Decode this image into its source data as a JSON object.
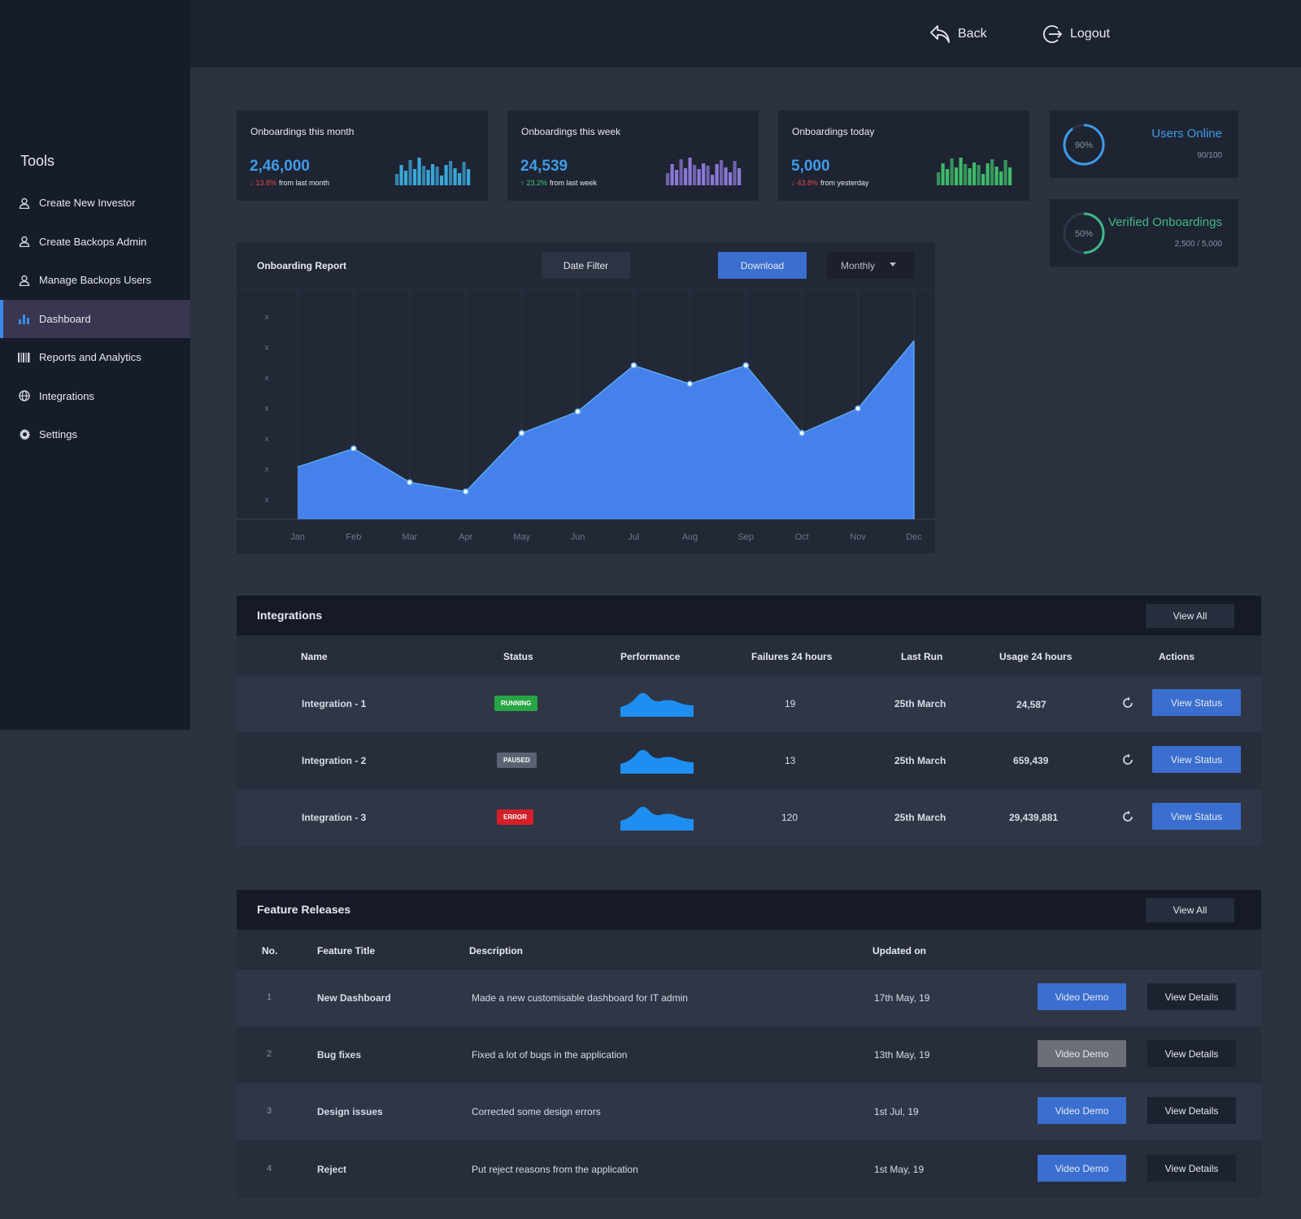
{
  "sidebar": {
    "title": "Tools",
    "items": [
      {
        "label": "Create New Investor",
        "icon": "user-icon"
      },
      {
        "label": "Create Backops Admin",
        "icon": "user-icon"
      },
      {
        "label": "Manage Backops Users",
        "icon": "user-icon"
      },
      {
        "label": "Dashboard",
        "icon": "bar-chart-icon",
        "active": true
      },
      {
        "label": "Reports and Analytics",
        "icon": "barcode-icon"
      },
      {
        "label": "Integrations",
        "icon": "globe-icon"
      },
      {
        "label": "Settings",
        "icon": "gear-icon"
      }
    ]
  },
  "header": {
    "back_label": "Back",
    "logout_label": "Logout"
  },
  "stats": [
    {
      "title": "Onboardings this month",
      "value": "2,46,000",
      "change": "13.8%",
      "direction": "down",
      "suffix": "from last month",
      "color": "#3aa6d8"
    },
    {
      "title": "Onboardings this week",
      "value": "24,539",
      "change": "23.2%",
      "direction": "up",
      "suffix": "from last week",
      "color": "#8b78d6"
    },
    {
      "title": "Onboardings today",
      "value": "5,000",
      "change": "43.8%",
      "direction": "down",
      "suffix": "from yesterday",
      "color": "#3fb96a"
    }
  ],
  "gauges": [
    {
      "title": "Users Online",
      "pct_label": "90%",
      "sub": "90/100",
      "fraction": 0.9,
      "color": "#3e9ce9"
    },
    {
      "title": "Verified Onboardings",
      "pct_label": "50%",
      "sub": "2,500 / 5,000",
      "fraction": 0.5,
      "color": "#3fb98a"
    }
  ],
  "report": {
    "title": "Onboarding Report",
    "date_filter_label": "Date Filter",
    "download_label": "Download",
    "period_label": "Monthly"
  },
  "chart_data": {
    "type": "area",
    "categories": [
      "Jan",
      "Feb",
      "Mar",
      "Apr",
      "May",
      "Jun",
      "Jul",
      "Aug",
      "Sep",
      "Oct",
      "Nov",
      "Dec"
    ],
    "y_tick_labels": [
      "x",
      "x",
      "x",
      "x",
      "x",
      "x",
      "x"
    ],
    "series": [
      {
        "values": [
          17,
          23,
          12,
          9,
          28,
          35,
          50,
          44,
          50,
          28,
          36,
          58
        ]
      }
    ],
    "ylim": [
      0,
      70
    ],
    "grid": true,
    "color": "#4680ea"
  },
  "integrations": {
    "title": "Integrations",
    "view_all_label": "View All",
    "columns": [
      "Name",
      "Status",
      "Performance",
      "Failures 24 hours",
      "Last Run",
      "Usage 24 hours",
      "Actions"
    ],
    "action_label": "View Status",
    "rows": [
      {
        "name": "Integration - 1",
        "status": "RUNNING",
        "status_key": "running",
        "failures": "19",
        "last_run": "25th March",
        "usage": "24,587"
      },
      {
        "name": "Integration - 2",
        "status": "PAUSED",
        "status_key": "paused",
        "failures": "13",
        "last_run": "25th March",
        "usage": "659,439"
      },
      {
        "name": "Integration - 3",
        "status": "ERROR",
        "status_key": "error",
        "failures": "120",
        "last_run": "25th March",
        "usage": "29,439,881"
      }
    ]
  },
  "features": {
    "title": "Feature Releases",
    "view_all_label": "View All",
    "columns": [
      "No.",
      "Feature Title",
      "Description",
      "Updated on"
    ],
    "demo_label": "Video Demo",
    "details_label": "View Details",
    "rows": [
      {
        "no": "1",
        "title": "New Dashboard",
        "description": "Made a new customisable dashboard for IT admin",
        "updated": "17th May, 19",
        "demo_disabled": false
      },
      {
        "no": "2",
        "title": "Bug fixes",
        "description": "Fixed a lot of bugs in the application",
        "updated": "13th May, 19",
        "demo_disabled": true
      },
      {
        "no": "3",
        "title": "Design issues",
        "description": "Corrected some design errors",
        "updated": "1st Jul, 19",
        "demo_disabled": false
      },
      {
        "no": "4",
        "title": "Reject",
        "description": "Put reject reasons from the application",
        "updated": "1st May, 19",
        "demo_disabled": false
      }
    ]
  }
}
